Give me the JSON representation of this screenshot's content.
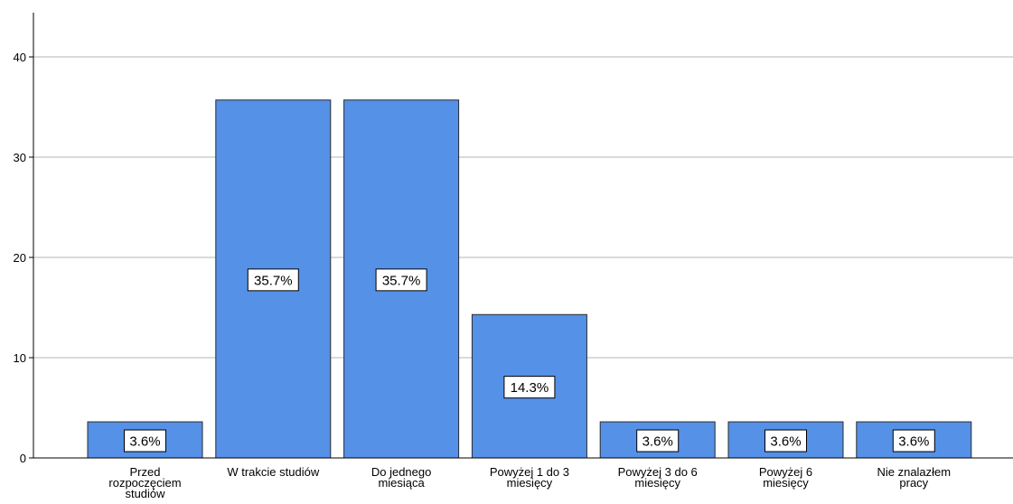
{
  "chart_data": {
    "type": "bar",
    "categories": [
      [
        "Przed",
        "rozpoczęciem",
        "studiów"
      ],
      [
        "W trakcie studiów"
      ],
      [
        "Do jednego",
        "miesiąca"
      ],
      [
        "Powyżej 1 do 3",
        "miesięcy"
      ],
      [
        "Powyżej 3 do 6",
        "miesięcy"
      ],
      [
        "Powyżej 6",
        "miesięcy"
      ],
      [
        "Nie znalazłem",
        "pracy"
      ]
    ],
    "values": [
      3.6,
      35.7,
      35.7,
      14.3,
      3.6,
      3.6,
      3.6
    ],
    "data_labels": [
      "3.6%",
      "35.7%",
      "35.7%",
      "14.3%",
      "3.6%",
      "3.6%",
      "3.6%"
    ],
    "yticks": [
      "0",
      "10",
      "20",
      "30",
      "40"
    ],
    "ylim": [
      0,
      45
    ],
    "grid": true,
    "bar_color": "#5591e6",
    "bar_edge_color": "#2b2b2b",
    "grid_color": "#b4b4b4",
    "title": "",
    "xlabel": "",
    "ylabel": ""
  }
}
